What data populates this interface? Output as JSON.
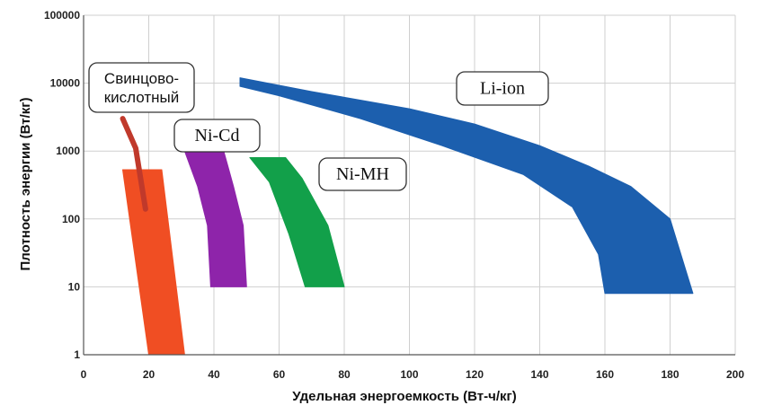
{
  "chart_data": {
    "type": "area",
    "title": "",
    "xlabel": "Удельная энергоемкость (Вт-ч/кг)",
    "ylabel": "Плотность энергии (Вт/кг)",
    "xlim": [
      0,
      200
    ],
    "ylim": [
      1,
      100000
    ],
    "y_scale": "log",
    "grid": true,
    "x_ticks": [
      "0",
      "20",
      "40",
      "60",
      "80",
      "100",
      "120",
      "140",
      "160",
      "180",
      "200"
    ],
    "y_ticks": [
      "1",
      "10",
      "100",
      "1000",
      "10000",
      "100000"
    ],
    "series": [
      {
        "name": "Свинцово-кислотный",
        "label_lines": [
          "Свинцово-",
          "кислотный"
        ],
        "color": "#f04e23",
        "region": [
          [
            12,
            530
          ],
          [
            24,
            530
          ],
          [
            31,
            1
          ],
          [
            20,
            1
          ]
        ],
        "tail": [
          [
            12,
            3000
          ],
          [
            16,
            1100
          ],
          [
            19,
            140
          ]
        ],
        "tail_color": "#c0392b"
      },
      {
        "name": "Ni-Cd",
        "label_lines": [
          "Ni-Cd"
        ],
        "color": "#8e24aa",
        "region": [
          [
            31,
            1000
          ],
          [
            43,
            1000
          ],
          [
            46,
            300
          ],
          [
            49,
            80
          ],
          [
            50,
            10
          ],
          [
            39,
            10
          ],
          [
            38,
            80
          ],
          [
            35,
            300
          ]
        ]
      },
      {
        "name": "Ni-MH",
        "label_lines": [
          "Ni-MH"
        ],
        "color": "#12a04a",
        "region": [
          [
            51,
            800
          ],
          [
            62,
            800
          ],
          [
            67,
            400
          ],
          [
            75,
            80
          ],
          [
            80,
            10
          ],
          [
            68,
            10
          ],
          [
            63,
            60
          ],
          [
            57,
            350
          ]
        ]
      },
      {
        "name": "Li-ion",
        "label_lines": [
          "Li-ion"
        ],
        "color": "#1c5fae",
        "region": [
          [
            48,
            12000
          ],
          [
            70,
            7500
          ],
          [
            100,
            4200
          ],
          [
            120,
            2500
          ],
          [
            140,
            1200
          ],
          [
            155,
            600
          ],
          [
            168,
            300
          ],
          [
            180,
            100
          ],
          [
            187,
            8
          ],
          [
            160,
            8
          ],
          [
            158,
            30
          ],
          [
            150,
            150
          ],
          [
            135,
            450
          ],
          [
            110,
            1200
          ],
          [
            85,
            3000
          ],
          [
            60,
            6500
          ],
          [
            48,
            9000
          ]
        ]
      }
    ]
  }
}
